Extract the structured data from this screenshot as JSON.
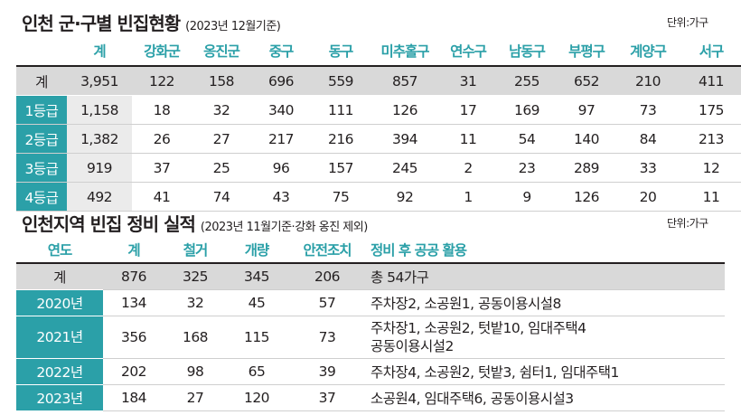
{
  "section1": {
    "title": "인천 군·구별 빈집현황",
    "subtitle": "(2023년 12월기준)",
    "unit": "단위:가구",
    "columns": [
      "계",
      "강화군",
      "옹진군",
      "중구",
      "동구",
      "미추홀구",
      "연수구",
      "남동구",
      "부평구",
      "계양구",
      "서구"
    ],
    "rows": [
      {
        "label": "계",
        "values": [
          "3,951",
          "122",
          "158",
          "696",
          "559",
          "857",
          "31",
          "255",
          "652",
          "210",
          "411"
        ]
      },
      {
        "label": "1등급",
        "values": [
          "1,158",
          "18",
          "32",
          "340",
          "111",
          "126",
          "17",
          "169",
          "97",
          "73",
          "175"
        ]
      },
      {
        "label": "2등급",
        "values": [
          "1,382",
          "26",
          "27",
          "217",
          "216",
          "394",
          "11",
          "54",
          "140",
          "84",
          "213"
        ]
      },
      {
        "label": "3등급",
        "values": [
          "919",
          "37",
          "25",
          "96",
          "157",
          "245",
          "2",
          "23",
          "289",
          "33",
          "12"
        ]
      },
      {
        "label": "4등급",
        "values": [
          "492",
          "41",
          "74",
          "43",
          "75",
          "92",
          "1",
          "9",
          "126",
          "20",
          "11"
        ]
      }
    ]
  },
  "section2": {
    "title": "인천지역 빈집 정비 실적",
    "subtitle": "(2023년 11월기준·강화 옹진 제외)",
    "unit": "단위:가구",
    "columns": [
      "연도",
      "계",
      "철거",
      "개량",
      "안전조치",
      "정비 후 공공 활용"
    ],
    "rows": [
      {
        "label": "계",
        "values": [
          "876",
          "325",
          "345",
          "206"
        ],
        "note": "총 54가구"
      },
      {
        "label": "2020년",
        "values": [
          "134",
          "32",
          "45",
          "57"
        ],
        "note": "주차장2, 소공원1, 공동이용시설8"
      },
      {
        "label": "2021년",
        "values": [
          "356",
          "168",
          "115",
          "73"
        ],
        "note": "주차장1, 소공원2, 텃밭10, 임대주택4",
        "note2": "공동이용시설2"
      },
      {
        "label": "2022년",
        "values": [
          "202",
          "98",
          "65",
          "39"
        ],
        "note": "주차장4, 소공원2, 텃밭3, 쉼터1, 임대주택1"
      },
      {
        "label": "2023년",
        "values": [
          "184",
          "27",
          "120",
          "37"
        ],
        "note": "소공원4, 임대주택6, 공동이용시설3"
      }
    ]
  }
}
